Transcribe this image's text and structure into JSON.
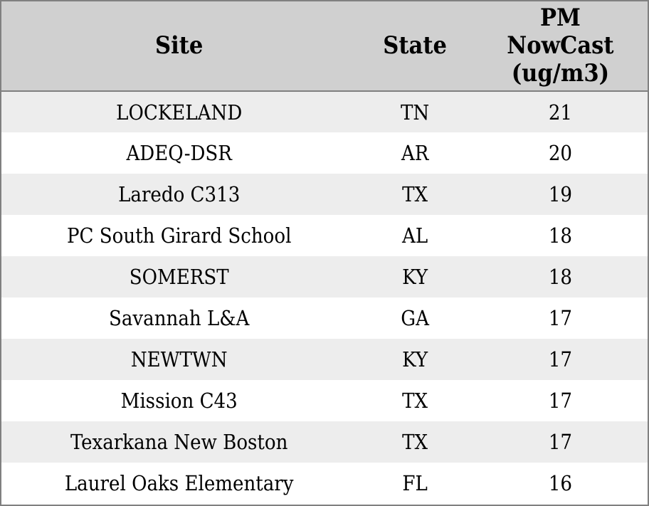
{
  "colors": {
    "header_bg": "#d0d0d0",
    "stripe_bg": "#ededed",
    "row_bg": "#ffffff",
    "border": "#808080",
    "text": "#000000"
  },
  "chart_data": {
    "type": "table",
    "title": "",
    "columns": [
      {
        "label": "Site"
      },
      {
        "label": "State"
      },
      {
        "label": "PM NowCast (ug/m3)",
        "lines": [
          "PM",
          "NowCast",
          "(ug/m3)"
        ]
      }
    ],
    "rows": [
      {
        "site": "LOCKELAND",
        "state": "TN",
        "value": 21
      },
      {
        "site": "ADEQ-DSR",
        "state": "AR",
        "value": 20
      },
      {
        "site": "Laredo C313",
        "state": "TX",
        "value": 19
      },
      {
        "site": "PC South Girard School",
        "state": "AL",
        "value": 18
      },
      {
        "site": "SOMERST",
        "state": "KY",
        "value": 18
      },
      {
        "site": "Savannah L&A",
        "state": "GA",
        "value": 17
      },
      {
        "site": "NEWTWN",
        "state": "KY",
        "value": 17
      },
      {
        "site": "Mission C43",
        "state": "TX",
        "value": 17
      },
      {
        "site": "Texarkana New Boston",
        "state": "TX",
        "value": 17
      },
      {
        "site": "Laurel Oaks Elementary",
        "state": "FL",
        "value": 16
      }
    ],
    "layout": {
      "stripes": "odd-rows-shaded",
      "alignment": "center",
      "header_wrap_lines": 3
    }
  }
}
